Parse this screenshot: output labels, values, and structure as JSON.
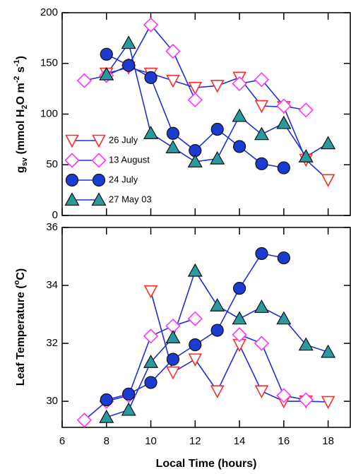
{
  "chart_data": [
    {
      "type": "line",
      "ylabel": [
        "g",
        "sv",
        " (mmol H",
        "2",
        "O m",
        "-2",
        " s",
        "-1",
        ")"
      ],
      "x": [
        7,
        8,
        9,
        10,
        11,
        12,
        13,
        14,
        15,
        16,
        17,
        18
      ],
      "xlim": [
        6,
        19
      ],
      "ylim": [
        0,
        200
      ],
      "yticks": [
        0,
        50,
        100,
        150,
        200
      ],
      "line_color": "#1f2fd6",
      "legend": "lower left",
      "series": [
        {
          "name": "26 July",
          "color": "#ff2a2a",
          "marker": "triangle-down-open",
          "values": [
            null,
            140,
            146,
            140,
            133,
            126,
            128,
            136,
            108,
            107,
            55,
            35
          ]
        },
        {
          "name": "13 August",
          "color": "#ff33ff",
          "marker": "diamond-open",
          "values": [
            133,
            138,
            148,
            188,
            162,
            114,
            null,
            130,
            134,
            108,
            104,
            null
          ]
        },
        {
          "name": "24 July",
          "color": "#1a3cd0",
          "marker": "circle",
          "values": [
            null,
            159,
            148,
            136,
            81,
            64,
            85,
            68,
            51,
            47,
            null,
            null
          ]
        },
        {
          "name": "27 May 03",
          "color": "#2a9a9e",
          "marker": "triangle-up",
          "values": [
            null,
            139,
            170,
            81,
            67,
            53,
            56,
            98,
            80,
            91,
            58,
            71
          ]
        }
      ]
    },
    {
      "type": "line",
      "ylabel": [
        "Leaf Temperature (",
        "o",
        "C)"
      ],
      "xlabel": "Local Time (hours)",
      "x": [
        7,
        8,
        9,
        10,
        11,
        12,
        13,
        14,
        15,
        16,
        17,
        18
      ],
      "xlim": [
        6,
        19
      ],
      "xticks": [
        6,
        8,
        10,
        12,
        14,
        16,
        18
      ],
      "ylim": [
        29.1,
        36
      ],
      "yticks": [
        30,
        32,
        34,
        36
      ],
      "line_color": "#1f2fd6",
      "series": [
        {
          "color": "#ff2a2a",
          "marker": "triangle-down-open",
          "values": [
            null,
            null,
            null,
            33.8,
            31.0,
            31.45,
            30.35,
            31.95,
            30.35,
            30.0,
            30.0,
            29.98
          ]
        },
        {
          "color": "#ff33ff",
          "marker": "diamond-open",
          "values": [
            29.35,
            30.0,
            30.2,
            32.25,
            32.6,
            32.85,
            null,
            32.3,
            32.0,
            30.2,
            30.05,
            null
          ]
        },
        {
          "color": "#1a3cd0",
          "marker": "circle",
          "values": [
            null,
            30.05,
            30.25,
            30.65,
            31.45,
            31.95,
            32.45,
            33.9,
            35.1,
            34.95,
            null,
            null
          ]
        },
        {
          "color": "#2a9a9e",
          "marker": "triangle-up",
          "values": [
            null,
            29.45,
            29.7,
            31.35,
            32.2,
            34.5,
            33.3,
            32.85,
            33.25,
            32.85,
            31.95,
            31.7
          ]
        }
      ]
    }
  ]
}
